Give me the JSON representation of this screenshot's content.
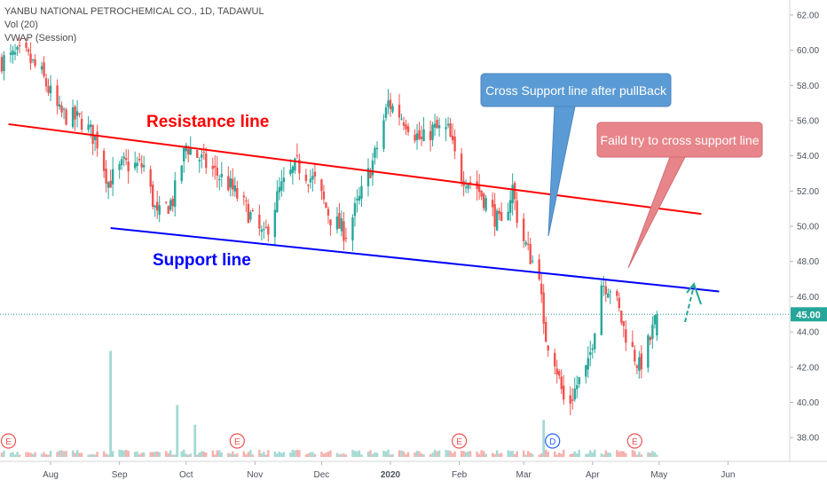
{
  "header": {
    "symbol": "YANBU NATIONAL PETROCHEMICAL CO., 1D, TADAWUL",
    "volume_indicator": "Vol (20)",
    "vwap_indicator": "VWAP (Session)"
  },
  "colors": {
    "up": "#26a69a",
    "down": "#ef5350",
    "resistance": "#ff0000",
    "support": "#0000ff",
    "price_line": "#26a69a",
    "callout_blue": "#5b9bd5",
    "callout_red": "#e8858a",
    "arrow": "#26a69a"
  },
  "chart_data": {
    "type": "candlestick",
    "y_axis": {
      "min": 36.9,
      "max": 62.6,
      "ticks": [
        "62.00",
        "60.00",
        "58.00",
        "56.00",
        "54.00",
        "52.00",
        "50.00",
        "48.00",
        "46.00",
        "44.00",
        "42.00",
        "40.00",
        "38.00"
      ]
    },
    "current_price": "45.00",
    "x_axis": {
      "labels": [
        "Aug",
        "Sep",
        "Oct",
        "Nov",
        "Dec",
        "2020",
        "Feb",
        "Mar",
        "Apr",
        "May",
        "Jun"
      ],
      "dates": [
        "2019-08-01",
        "2019-09-01",
        "2019-10-01",
        "2019-11-01",
        "2019-12-01",
        "2020-01-01",
        "2020-02-01",
        "2020-03-01",
        "2020-04-01",
        "2020-05-01",
        "2020-06-01"
      ]
    },
    "date_range": [
      "2019-07-10",
      "2020-04-30"
    ],
    "price_path": [
      [
        "2019-07-10",
        59.4
      ],
      [
        "2019-07-20",
        59.8
      ],
      [
        "2019-07-28",
        58.6
      ],
      [
        "2019-08-05",
        56.4
      ],
      [
        "2019-08-15",
        56.0
      ],
      [
        "2019-08-22",
        54.8
      ],
      [
        "2019-08-27",
        52.5
      ],
      [
        "2019-09-03",
        53.5
      ],
      [
        "2019-09-12",
        53.4
      ],
      [
        "2019-09-18",
        50.5
      ],
      [
        "2019-09-25",
        51.5
      ],
      [
        "2019-10-01",
        54.6
      ],
      [
        "2019-10-10",
        53.5
      ],
      [
        "2019-10-20",
        52.4
      ],
      [
        "2019-10-28",
        51.0
      ],
      [
        "2019-11-05",
        49.3
      ],
      [
        "2019-11-12",
        52.0
      ],
      [
        "2019-11-20",
        53.5
      ],
      [
        "2019-11-28",
        52.5
      ],
      [
        "2019-12-05",
        50.5
      ],
      [
        "2019-12-12",
        49.6
      ],
      [
        "2019-12-18",
        51.5
      ],
      [
        "2019-12-25",
        54.0
      ],
      [
        "2019-12-31",
        57.0
      ],
      [
        "2020-01-08",
        56.0
      ],
      [
        "2020-01-15",
        54.8
      ],
      [
        "2020-01-20",
        55.5
      ],
      [
        "2020-01-27",
        55.4
      ],
      [
        "2020-02-01",
        53.0
      ],
      [
        "2020-02-08",
        52.4
      ],
      [
        "2020-02-15",
        51.0
      ],
      [
        "2020-02-20",
        49.9
      ],
      [
        "2020-02-25",
        52.2
      ],
      [
        "2020-02-28",
        49.8
      ],
      [
        "2020-03-05",
        48.0
      ],
      [
        "2020-03-08",
        47.5
      ],
      [
        "2020-03-10",
        44.0
      ],
      [
        "2020-03-15",
        42.5
      ],
      [
        "2020-03-20",
        39.5
      ],
      [
        "2020-03-25",
        41.0
      ],
      [
        "2020-03-30",
        42.0
      ],
      [
        "2020-04-05",
        46.8
      ],
      [
        "2020-04-10",
        46.5
      ],
      [
        "2020-04-15",
        44.2
      ],
      [
        "2020-04-22",
        42.0
      ],
      [
        "2020-04-27",
        43.6
      ],
      [
        "2020-04-30",
        45.0
      ]
    ],
    "volume_spikes": [
      [
        "2019-08-28",
        0.92
      ],
      [
        "2019-09-27",
        0.45
      ],
      [
        "2019-10-05",
        0.28
      ],
      [
        "2020-03-10",
        0.32
      ]
    ],
    "earnings_markers": [
      {
        "date": "2019-07-13",
        "label": "E"
      },
      {
        "date": "2019-10-24",
        "label": "E"
      },
      {
        "date": "2020-02-01",
        "label": "E"
      },
      {
        "date": "2020-04-20",
        "label": "E"
      }
    ],
    "dividend_markers": [
      {
        "date": "2020-03-14",
        "label": "D"
      }
    ],
    "lines": [
      {
        "name": "resistance",
        "from": [
          "2019-07-13",
          55.8
        ],
        "to": [
          "2020-05-20",
          50.7
        ]
      },
      {
        "name": "support",
        "from": [
          "2019-08-28",
          49.9
        ],
        "to": [
          "2020-05-28",
          46.3
        ]
      }
    ],
    "annotations": {
      "resistance_label": "Resistance line",
      "support_label": "Support line",
      "callout_blue": "Cross Support line after pullBack",
      "callout_red": "Faild try to cross support line"
    }
  }
}
